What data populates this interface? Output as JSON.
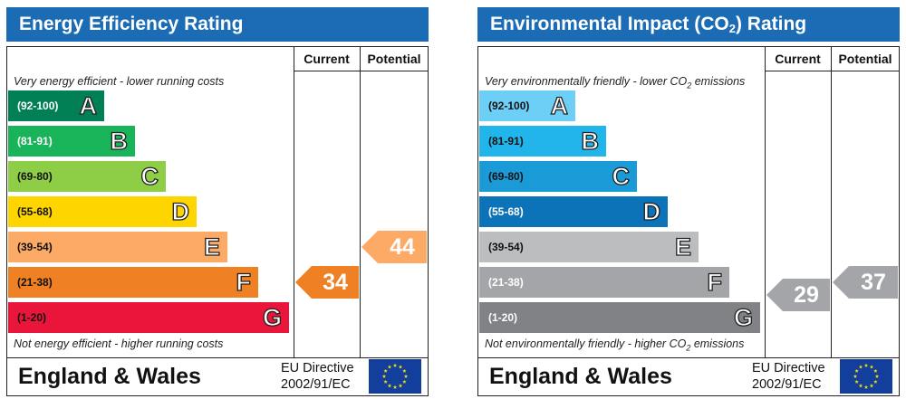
{
  "energy": {
    "title": "Energy Efficiency Rating",
    "col_current": "Current",
    "col_potential": "Potential",
    "top_caption": "Very energy efficient - lower running costs",
    "bottom_caption": "Not energy efficient - higher running costs",
    "bands": [
      {
        "range": "(92-100)",
        "letter": "A",
        "color": "#008054"
      },
      {
        "range": "(81-91)",
        "letter": "B",
        "color": "#19b459"
      },
      {
        "range": "(69-80)",
        "letter": "C",
        "color": "#8dce46"
      },
      {
        "range": "(55-68)",
        "letter": "D",
        "color": "#ffd500"
      },
      {
        "range": "(39-54)",
        "letter": "E",
        "color": "#fcaa65"
      },
      {
        "range": "(21-38)",
        "letter": "F",
        "color": "#ef8023"
      },
      {
        "range": "(1-20)",
        "letter": "G",
        "color": "#e9153b"
      }
    ],
    "current": {
      "value": "34",
      "color": "#ef8023"
    },
    "potential": {
      "value": "44",
      "color": "#fcaa65"
    },
    "region": "England & Wales",
    "directive_line1": "EU Directive",
    "directive_line2": "2002/91/EC"
  },
  "environment": {
    "title_main": "Environmental Impact (CO",
    "title_sub": "2",
    "title_end": ") Rating",
    "col_current": "Current",
    "col_potential": "Potential",
    "top_caption_main": "Very environmentally friendly - lower CO",
    "top_caption_sub": "2",
    "top_caption_end": " emissions",
    "bottom_caption_main": "Not environmentally friendly - higher CO",
    "bottom_caption_sub": "2",
    "bottom_caption_end": " emissions",
    "bands": [
      {
        "range": "(92-100)",
        "letter": "A",
        "color": "#6ecff6"
      },
      {
        "range": "(81-91)",
        "letter": "B",
        "color": "#22b5ec"
      },
      {
        "range": "(69-80)",
        "letter": "C",
        "color": "#1b9ad8"
      },
      {
        "range": "(55-68)",
        "letter": "D",
        "color": "#0c73b8"
      },
      {
        "range": "(39-54)",
        "letter": "E",
        "color": "#bbbdbf"
      },
      {
        "range": "(21-38)",
        "letter": "F",
        "color": "#a3a5a8"
      },
      {
        "range": "(1-20)",
        "letter": "G",
        "color": "#808285"
      }
    ],
    "current": {
      "value": "29",
      "color": "#a3a5a8"
    },
    "potential": {
      "value": "37",
      "color": "#a3a5a8"
    },
    "region": "England & Wales",
    "directive_line1": "EU Directive",
    "directive_line2": "2002/91/EC"
  }
}
